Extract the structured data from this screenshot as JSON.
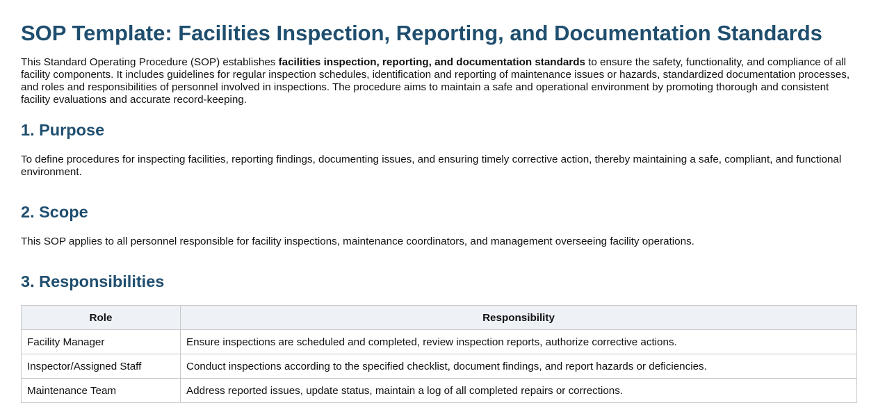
{
  "title": "SOP Template: Facilities Inspection, Reporting, and Documentation Standards",
  "intro": {
    "before": "This Standard Operating Procedure (SOP) establishes ",
    "bold": "facilities inspection, reporting, and documentation standards",
    "after": " to ensure the safety, functionality, and compliance of all facility components. It includes guidelines for regular inspection schedules, identification and reporting of maintenance issues or hazards, standardized documentation processes, and roles and responsibilities of personnel involved in inspections. The procedure aims to maintain a safe and operational environment by promoting thorough and consistent facility evaluations and accurate record-keeping."
  },
  "sections": [
    {
      "heading": "1. Purpose",
      "text": "To define procedures for inspecting facilities, reporting findings, documenting issues, and ensuring timely corrective action, thereby maintaining a safe, compliant, and functional environment."
    },
    {
      "heading": "2. Scope",
      "text": "This SOP applies to all personnel responsible for facility inspections, maintenance coordinators, and management overseeing facility operations."
    },
    {
      "heading": "3. Responsibilities"
    }
  ],
  "table": {
    "headers": [
      "Role",
      "Responsibility"
    ],
    "rows": [
      [
        "Facility Manager",
        "Ensure inspections are scheduled and completed, review inspection reports, authorize corrective actions."
      ],
      [
        "Inspector/Assigned Staff",
        "Conduct inspections according to the specified checklist, document findings, and report hazards or deficiencies."
      ],
      [
        "Maintenance Team",
        "Address reported issues, update status, maintain a log of all completed repairs or corrections."
      ]
    ]
  }
}
